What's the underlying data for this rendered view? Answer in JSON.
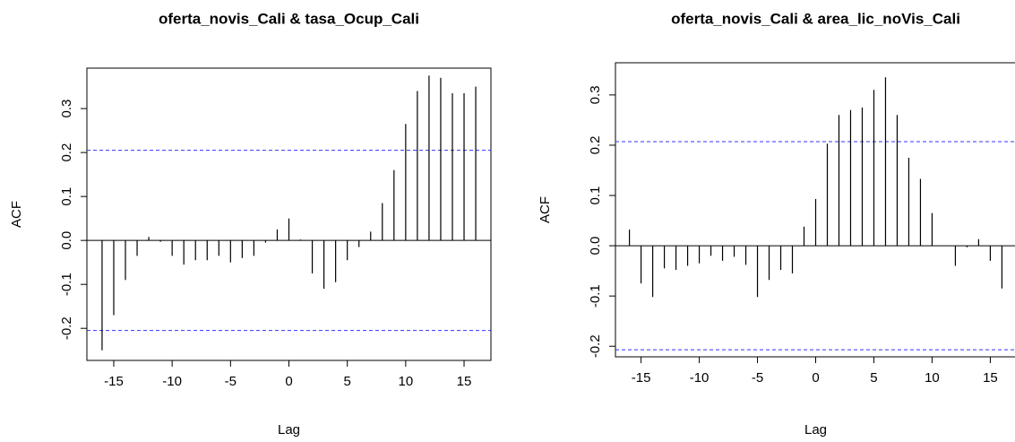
{
  "chart_data": [
    {
      "type": "bar",
      "title": "oferta_novis_Cali & tasa_Ocup_Cali",
      "x_label": "Lag",
      "y_label": "ACF",
      "x": [
        -16,
        -15,
        -14,
        -13,
        -12,
        -11,
        -10,
        -9,
        -8,
        -7,
        -6,
        -5,
        -4,
        -3,
        -2,
        -1,
        0,
        1,
        2,
        3,
        4,
        5,
        6,
        7,
        8,
        9,
        10,
        11,
        12,
        13,
        14,
        15,
        16
      ],
      "values": [
        -0.25,
        -0.17,
        -0.09,
        -0.035,
        0.008,
        -0.003,
        -0.035,
        -0.055,
        -0.045,
        -0.045,
        -0.035,
        -0.05,
        -0.04,
        -0.035,
        -0.005,
        0.025,
        0.05,
        0.002,
        -0.075,
        -0.11,
        -0.095,
        -0.045,
        -0.015,
        0.02,
        0.085,
        0.16,
        0.265,
        0.34,
        0.375,
        0.37,
        0.335,
        0.335,
        0.35
      ],
      "color": "#000000",
      "conf_limits": [
        -0.205,
        0.205
      ],
      "conf_color": "#3333ff",
      "xlim": [
        -17.3,
        17.3
      ],
      "xticks": [
        -15,
        -10,
        -5,
        0,
        5,
        10,
        15
      ],
      "ylim": [
        -0.273,
        0.392
      ],
      "yticks": [
        -0.2,
        -0.1,
        {
          "value": 0,
          "label": "0.0"
        },
        0.1,
        0.2,
        0.3
      ]
    },
    {
      "type": "bar",
      "title": "oferta_novis_Cali & area_lic_noVis_Cali",
      "x_label": "Lag",
      "y_label": "ACF",
      "x": [
        -16,
        -15,
        -14,
        -13,
        -12,
        -11,
        -10,
        -9,
        -8,
        -7,
        -6,
        -5,
        -4,
        -3,
        -2,
        -1,
        0,
        1,
        2,
        3,
        4,
        5,
        6,
        7,
        8,
        9,
        10,
        11,
        12,
        13,
        14,
        15,
        16
      ],
      "values": [
        0.032,
        -0.075,
        -0.102,
        -0.045,
        -0.048,
        -0.04,
        -0.035,
        -0.02,
        -0.03,
        -0.022,
        -0.038,
        -0.102,
        -0.068,
        -0.048,
        -0.055,
        0.038,
        0.093,
        0.203,
        0.26,
        0.27,
        0.275,
        0.31,
        0.335,
        0.26,
        0.175,
        0.133,
        0.065,
        0.0,
        -0.04,
        -0.003,
        0.013,
        -0.03,
        -0.085
      ],
      "color": "#000000",
      "conf_limits": [
        -0.207,
        0.207
      ],
      "conf_color": "#3333ff",
      "xlim": [
        -17.2,
        17.2
      ],
      "xticks": [
        -15,
        -10,
        -5,
        0,
        5,
        10,
        15
      ],
      "ylim": [
        -0.221,
        0.364
      ],
      "yticks": [
        -0.2,
        -0.1,
        {
          "value": 0,
          "label": "0.0"
        },
        0.1,
        0.2,
        0.3
      ]
    }
  ]
}
